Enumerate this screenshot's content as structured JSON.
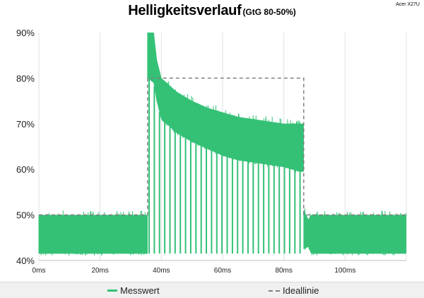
{
  "title": "Helligkeitsverlauf",
  "subtitle": "(GtG 80-50%)",
  "brand_label": "Acer X27U",
  "colors": {
    "measured": "#34c176",
    "ideal": "#808080",
    "grid": "#e2e2e2"
  },
  "chart_data": {
    "type": "line",
    "title": "Helligkeitsverlauf",
    "subtitle": "(GtG 80-50%)",
    "xlabel": "",
    "ylabel": "",
    "xlim": [
      0,
      120
    ],
    "ylim": [
      40,
      90
    ],
    "x_ticks": [
      "0ms",
      "20ms",
      "40ms",
      "60ms",
      "80ms",
      "100ms"
    ],
    "x_tick_values": [
      0,
      20,
      40,
      60,
      80,
      100
    ],
    "y_ticks": [
      "40%",
      "50%",
      "60%",
      "70%",
      "80%",
      "90%"
    ],
    "y_tick_values": [
      40,
      50,
      60,
      70,
      80,
      90
    ],
    "grid": "vertical",
    "legend": "bottom",
    "series": [
      {
        "name": "Messwert",
        "style": "solid",
        "x": [
          0,
          35.5,
          35.5,
          37.5,
          38.5,
          40,
          45,
          50,
          55,
          60,
          65,
          70,
          75,
          80,
          85,
          86.5,
          86.5,
          88,
          89,
          120
        ],
        "y_upper": [
          50,
          50,
          90,
          90,
          84,
          80,
          77,
          75,
          73.5,
          72.5,
          71.5,
          71,
          70.5,
          70,
          70,
          70,
          51,
          49,
          50,
          50
        ],
        "y_lower": [
          41.5,
          41.5,
          80,
          79,
          75,
          71,
          68,
          66,
          64.5,
          63,
          62,
          61.5,
          61,
          60.5,
          59.5,
          59.5,
          42.5,
          43,
          41.5,
          41.5
        ],
        "dips": {
          "start_ms": 36,
          "period_ms": 1.7,
          "end_ms": 86,
          "min_level": 41.5
        }
      },
      {
        "name": "Ideallinie",
        "style": "dashed",
        "x": [
          0,
          35.5,
          35.5,
          86.5,
          86.5,
          120
        ],
        "y": [
          50,
          50,
          80,
          80,
          50,
          50
        ]
      }
    ]
  },
  "legend": {
    "measured_label": "Messwert",
    "ideal_label": "Ideallinie"
  }
}
